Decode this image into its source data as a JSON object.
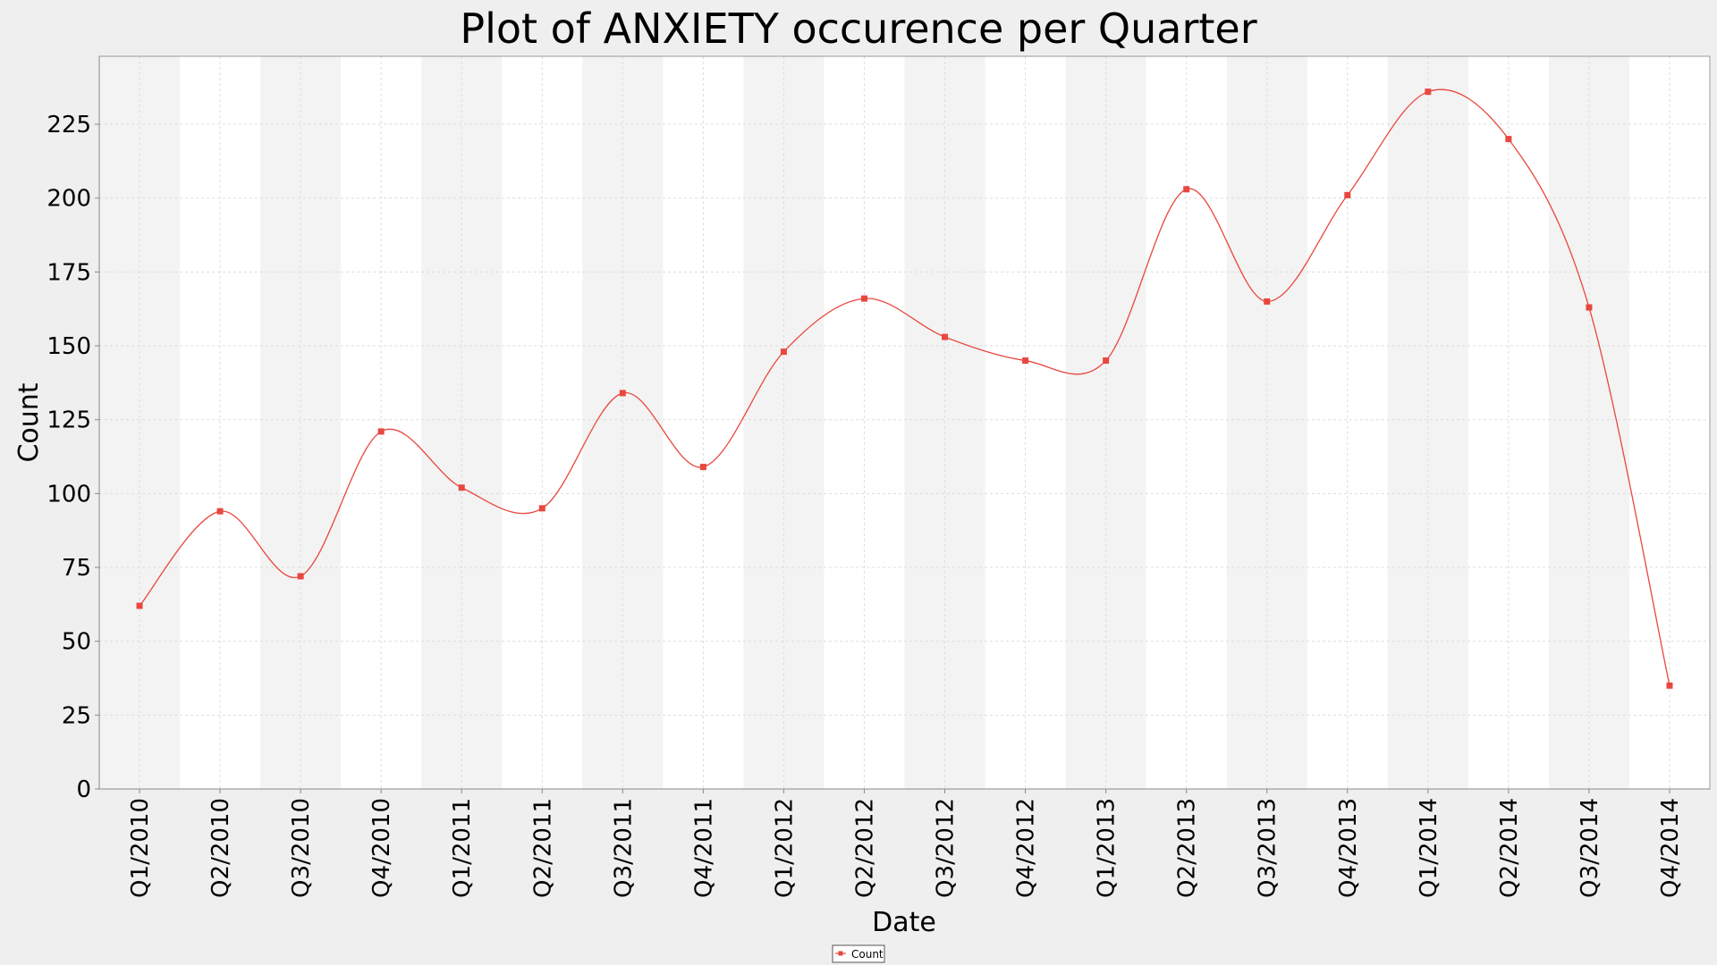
{
  "chart_data": {
    "type": "line",
    "title": "Plot of ANXIETY occurence per Quarter",
    "xlabel": "Date",
    "ylabel": "Count",
    "categories": [
      "Q1/2010",
      "Q2/2010",
      "Q3/2010",
      "Q4/2010",
      "Q1/2011",
      "Q2/2011",
      "Q3/2011",
      "Q4/2011",
      "Q1/2012",
      "Q2/2012",
      "Q3/2012",
      "Q4/2012",
      "Q1/2013",
      "Q2/2013",
      "Q3/2013",
      "Q4/2013",
      "Q1/2014",
      "Q2/2014",
      "Q3/2014",
      "Q4/2014"
    ],
    "series": [
      {
        "name": "Count",
        "color": "#e8473f",
        "values": [
          62,
          94,
          72,
          121,
          102,
          95,
          134,
          109,
          148,
          166,
          153,
          145,
          145,
          203,
          165,
          201,
          236,
          220,
          163,
          35
        ]
      }
    ],
    "ylim": [
      0,
      248
    ],
    "yticks": [
      0,
      25,
      50,
      75,
      100,
      125,
      150,
      175,
      200,
      225
    ],
    "grid": true,
    "smoothed": true,
    "legend_position": "bottom-center",
    "colors": {
      "page_background": "#efefef",
      "plot_background": "#ffffff",
      "band_shade": "#f3f3f3",
      "grid": "#dddddd",
      "line": "#e8473f"
    }
  }
}
